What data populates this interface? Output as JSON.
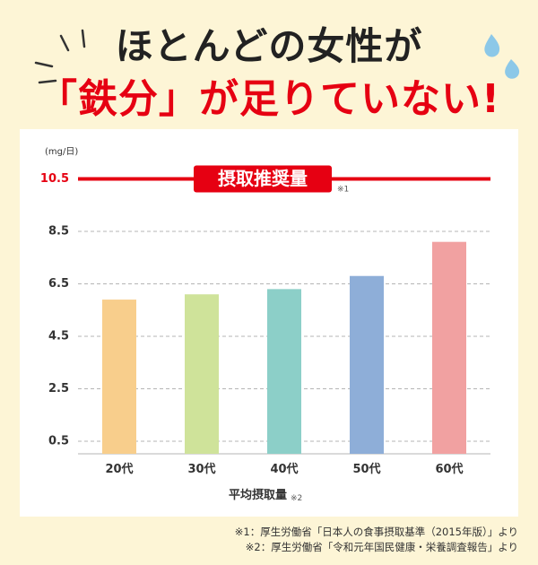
{
  "headline": {
    "line1": "ほとんどの女性が",
    "line2": "「鉄分」が足りていない!"
  },
  "colors": {
    "background": "#fdf5d6",
    "accent_red": "#e60012",
    "drop_blue": "#8cc8e8",
    "bars": [
      "#f8ce8c",
      "#cfe39a",
      "#8ccfc8",
      "#8eaed8",
      "#f1a1a1"
    ]
  },
  "chart_data": {
    "type": "bar",
    "unit": "(mg/日)",
    "categories": [
      "20代",
      "30代",
      "40代",
      "50代",
      "60代"
    ],
    "values": [
      5.9,
      6.1,
      6.3,
      6.8,
      8.1
    ],
    "yticks": [
      "0.5",
      "2.5",
      "4.5",
      "6.5",
      "8.5"
    ],
    "ylim": [
      0,
      10.5
    ],
    "grid": "dashed",
    "reference_line": {
      "label": "摂取推奨量",
      "value_label": "10.5",
      "value": 10.5,
      "note": "※1"
    },
    "xlabel": "平均摂取量",
    "xlabel_note": "※2"
  },
  "footnotes": [
    "※1：厚生労働省「日本人の食事摂取基準（2015年版）」より",
    "※2：厚生労働省「令和元年国民健康・栄養調査報告」より"
  ]
}
